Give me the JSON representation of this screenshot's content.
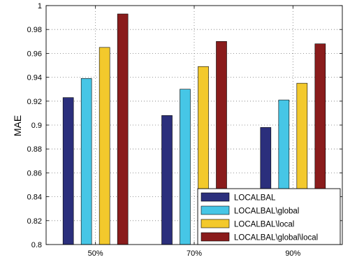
{
  "chart_data": {
    "type": "bar",
    "title": "",
    "xlabel": "",
    "ylabel": "MAE",
    "ylim": [
      0.8,
      1.0
    ],
    "yticks": [
      "0.8",
      "0.82",
      "0.84",
      "0.86",
      "0.88",
      "0.9",
      "0.92",
      "0.94",
      "0.96",
      "0.98",
      "1"
    ],
    "categories": [
      "50%",
      "70%",
      "90%"
    ],
    "grid": true,
    "legend_position": "bottom-right",
    "series": [
      {
        "name": "LOCALBAL",
        "color": "#2b2f7c",
        "values": [
          0.923,
          0.908,
          0.898
        ]
      },
      {
        "name": "LOCALBAL\\global",
        "color": "#46c6e6",
        "values": [
          0.939,
          0.93,
          0.921
        ]
      },
      {
        "name": "LOCALBAL\\local",
        "color": "#f3c92c",
        "values": [
          0.965,
          0.949,
          0.935
        ]
      },
      {
        "name": "LOCALBAL\\global\\local",
        "color": "#8a1c1c",
        "values": [
          0.993,
          0.97,
          0.968
        ]
      }
    ]
  }
}
